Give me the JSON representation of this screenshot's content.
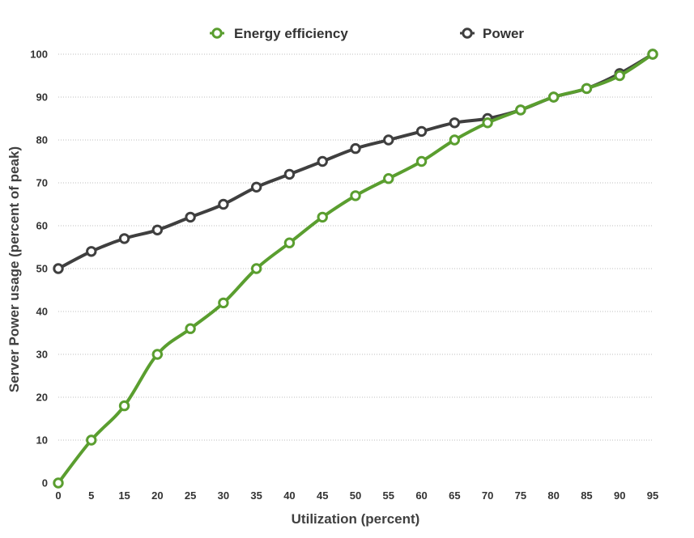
{
  "chart_data": {
    "type": "line",
    "xlabel": "Utilization (percent)",
    "ylabel": "Server Power usage (percent of peak)",
    "ylim": [
      0,
      100
    ],
    "yticks": [
      "0",
      "10",
      "20",
      "30",
      "40",
      "50",
      "60",
      "70",
      "80",
      "90",
      "100"
    ],
    "categories": [
      "0",
      "5",
      "15",
      "20",
      "25",
      "30",
      "35",
      "40",
      "45",
      "50",
      "55",
      "60",
      "65",
      "70",
      "75",
      "80",
      "85",
      "90",
      "95"
    ],
    "grid": true,
    "legend_position": "top",
    "series": [
      {
        "name": "Energy efficiency",
        "color": "#5a9e2f",
        "values": [
          0,
          10,
          18,
          30,
          36,
          42,
          50,
          56,
          62,
          67,
          71,
          75,
          80,
          84,
          87,
          90,
          92,
          95,
          100
        ]
      },
      {
        "name": "Power",
        "color": "#3f3f3f",
        "values": [
          50,
          54,
          57,
          59,
          62,
          65,
          69,
          72,
          75,
          78,
          80,
          82,
          84,
          85,
          87,
          90,
          92,
          95.5,
          100
        ]
      }
    ]
  }
}
